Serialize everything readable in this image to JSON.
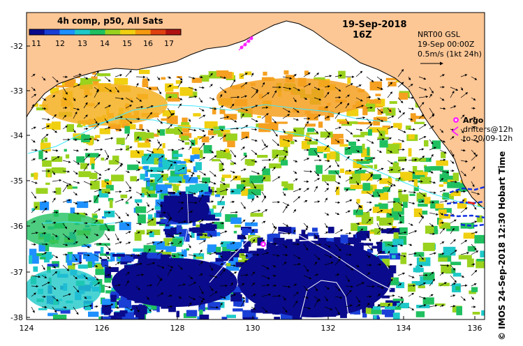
{
  "map": {
    "title": "19-Sep-2018",
    "time": "16Z",
    "colorbar": {
      "title": "4h comp, p50, All Sats",
      "ticks": [
        "11",
        "12",
        "13",
        "14",
        "15",
        "16",
        "17"
      ],
      "colors": [
        "#0a0a8c",
        "#1a3fd6",
        "#1e90ff",
        "#1ec8c8",
        "#20c060",
        "#9ad21e",
        "#f0d010",
        "#f59a10",
        "#e04010",
        "#b01010"
      ]
    },
    "current_model": {
      "line1": "NRT00 GSL",
      "line2": "19-Sep 00:00Z",
      "line3": "0.5m/s (1kt 24h)"
    },
    "legend": {
      "argo_label": "Argo",
      "drifters_line1": "drifters@12h",
      "drifters_line2": "to 20/09-12h"
    },
    "credit": "© IMOS 24-Sep-2018 12:30 Hobart Time",
    "lon_ticks": [
      "124",
      "126",
      "128",
      "130",
      "132",
      "134",
      "136"
    ],
    "lat_ticks": [
      "-32",
      "-33",
      "-34",
      "-35",
      "-36",
      "-37",
      "-38"
    ],
    "colors": {
      "land": "#fcc695",
      "argo": "#ff22ff",
      "contour": "#40e8ff"
    }
  }
}
